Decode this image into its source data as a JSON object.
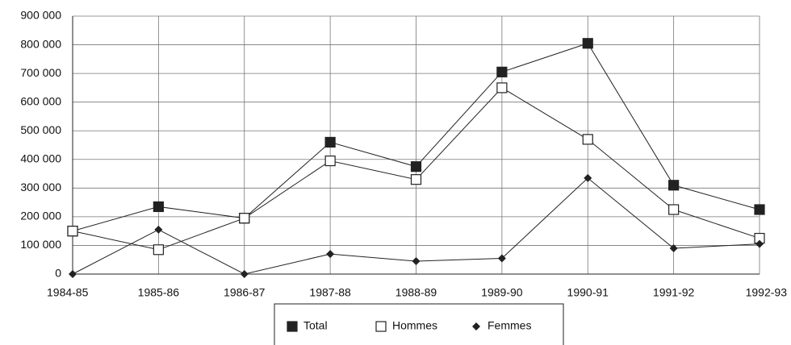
{
  "chart_data": {
    "type": "line",
    "categories": [
      "1984-85",
      "1985-86",
      "1986-87",
      "1987-88",
      "1988-89",
      "1989-90",
      "1990-91",
      "1991-92",
      "1992-93"
    ],
    "series": [
      {
        "name": "Total",
        "color": "#222222",
        "marker": "filled-square",
        "values": [
          150000,
          235000,
          195000,
          460000,
          375000,
          705000,
          805000,
          310000,
          225000
        ]
      },
      {
        "name": "Hommes",
        "color": "#222222",
        "marker": "open-square",
        "values": [
          150000,
          85000,
          195000,
          395000,
          330000,
          650000,
          470000,
          225000,
          125000
        ]
      },
      {
        "name": "Femmes",
        "color": "#222222",
        "marker": "diamond",
        "values": [
          0,
          155000,
          0,
          70000,
          45000,
          55000,
          335000,
          90000,
          105000
        ]
      }
    ],
    "ylim": [
      0,
      900000
    ],
    "yticks": [
      {
        "value": 0,
        "label": "0"
      },
      {
        "value": 100000,
        "label": "100 000"
      },
      {
        "value": 200000,
        "label": "200 000"
      },
      {
        "value": 300000,
        "label": "300 000"
      },
      {
        "value": 400000,
        "label": "400 000"
      },
      {
        "value": 500000,
        "label": "500 000"
      },
      {
        "value": 600000,
        "label": "600 000"
      },
      {
        "value": 700000,
        "label": "700 000"
      },
      {
        "value": 800000,
        "label": "800 000"
      },
      {
        "value": 900000,
        "label": "900 000"
      }
    ],
    "grid": true
  }
}
